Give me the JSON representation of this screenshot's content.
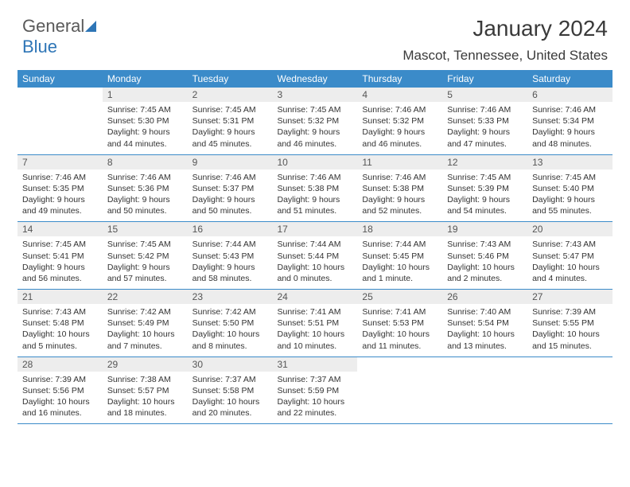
{
  "logo": {
    "text_a": "General",
    "text_b": "Blue",
    "color_gray": "#5a5a5a",
    "color_blue": "#2e75b6"
  },
  "title": "January 2024",
  "location": "Mascot, Tennessee, United States",
  "header_bg": "#3b8bc9",
  "header_fg": "#ffffff",
  "daynum_bg": "#ededed",
  "border_color": "#3b8bc9",
  "weekdays": [
    "Sunday",
    "Monday",
    "Tuesday",
    "Wednesday",
    "Thursday",
    "Friday",
    "Saturday"
  ],
  "weeks": [
    [
      null,
      {
        "n": "1",
        "sr": "Sunrise: 7:45 AM",
        "ss": "Sunset: 5:30 PM",
        "dl1": "Daylight: 9 hours",
        "dl2": "and 44 minutes."
      },
      {
        "n": "2",
        "sr": "Sunrise: 7:45 AM",
        "ss": "Sunset: 5:31 PM",
        "dl1": "Daylight: 9 hours",
        "dl2": "and 45 minutes."
      },
      {
        "n": "3",
        "sr": "Sunrise: 7:45 AM",
        "ss": "Sunset: 5:32 PM",
        "dl1": "Daylight: 9 hours",
        "dl2": "and 46 minutes."
      },
      {
        "n": "4",
        "sr": "Sunrise: 7:46 AM",
        "ss": "Sunset: 5:32 PM",
        "dl1": "Daylight: 9 hours",
        "dl2": "and 46 minutes."
      },
      {
        "n": "5",
        "sr": "Sunrise: 7:46 AM",
        "ss": "Sunset: 5:33 PM",
        "dl1": "Daylight: 9 hours",
        "dl2": "and 47 minutes."
      },
      {
        "n": "6",
        "sr": "Sunrise: 7:46 AM",
        "ss": "Sunset: 5:34 PM",
        "dl1": "Daylight: 9 hours",
        "dl2": "and 48 minutes."
      }
    ],
    [
      {
        "n": "7",
        "sr": "Sunrise: 7:46 AM",
        "ss": "Sunset: 5:35 PM",
        "dl1": "Daylight: 9 hours",
        "dl2": "and 49 minutes."
      },
      {
        "n": "8",
        "sr": "Sunrise: 7:46 AM",
        "ss": "Sunset: 5:36 PM",
        "dl1": "Daylight: 9 hours",
        "dl2": "and 50 minutes."
      },
      {
        "n": "9",
        "sr": "Sunrise: 7:46 AM",
        "ss": "Sunset: 5:37 PM",
        "dl1": "Daylight: 9 hours",
        "dl2": "and 50 minutes."
      },
      {
        "n": "10",
        "sr": "Sunrise: 7:46 AM",
        "ss": "Sunset: 5:38 PM",
        "dl1": "Daylight: 9 hours",
        "dl2": "and 51 minutes."
      },
      {
        "n": "11",
        "sr": "Sunrise: 7:46 AM",
        "ss": "Sunset: 5:38 PM",
        "dl1": "Daylight: 9 hours",
        "dl2": "and 52 minutes."
      },
      {
        "n": "12",
        "sr": "Sunrise: 7:45 AM",
        "ss": "Sunset: 5:39 PM",
        "dl1": "Daylight: 9 hours",
        "dl2": "and 54 minutes."
      },
      {
        "n": "13",
        "sr": "Sunrise: 7:45 AM",
        "ss": "Sunset: 5:40 PM",
        "dl1": "Daylight: 9 hours",
        "dl2": "and 55 minutes."
      }
    ],
    [
      {
        "n": "14",
        "sr": "Sunrise: 7:45 AM",
        "ss": "Sunset: 5:41 PM",
        "dl1": "Daylight: 9 hours",
        "dl2": "and 56 minutes."
      },
      {
        "n": "15",
        "sr": "Sunrise: 7:45 AM",
        "ss": "Sunset: 5:42 PM",
        "dl1": "Daylight: 9 hours",
        "dl2": "and 57 minutes."
      },
      {
        "n": "16",
        "sr": "Sunrise: 7:44 AM",
        "ss": "Sunset: 5:43 PM",
        "dl1": "Daylight: 9 hours",
        "dl2": "and 58 minutes."
      },
      {
        "n": "17",
        "sr": "Sunrise: 7:44 AM",
        "ss": "Sunset: 5:44 PM",
        "dl1": "Daylight: 10 hours",
        "dl2": "and 0 minutes."
      },
      {
        "n": "18",
        "sr": "Sunrise: 7:44 AM",
        "ss": "Sunset: 5:45 PM",
        "dl1": "Daylight: 10 hours",
        "dl2": "and 1 minute."
      },
      {
        "n": "19",
        "sr": "Sunrise: 7:43 AM",
        "ss": "Sunset: 5:46 PM",
        "dl1": "Daylight: 10 hours",
        "dl2": "and 2 minutes."
      },
      {
        "n": "20",
        "sr": "Sunrise: 7:43 AM",
        "ss": "Sunset: 5:47 PM",
        "dl1": "Daylight: 10 hours",
        "dl2": "and 4 minutes."
      }
    ],
    [
      {
        "n": "21",
        "sr": "Sunrise: 7:43 AM",
        "ss": "Sunset: 5:48 PM",
        "dl1": "Daylight: 10 hours",
        "dl2": "and 5 minutes."
      },
      {
        "n": "22",
        "sr": "Sunrise: 7:42 AM",
        "ss": "Sunset: 5:49 PM",
        "dl1": "Daylight: 10 hours",
        "dl2": "and 7 minutes."
      },
      {
        "n": "23",
        "sr": "Sunrise: 7:42 AM",
        "ss": "Sunset: 5:50 PM",
        "dl1": "Daylight: 10 hours",
        "dl2": "and 8 minutes."
      },
      {
        "n": "24",
        "sr": "Sunrise: 7:41 AM",
        "ss": "Sunset: 5:51 PM",
        "dl1": "Daylight: 10 hours",
        "dl2": "and 10 minutes."
      },
      {
        "n": "25",
        "sr": "Sunrise: 7:41 AM",
        "ss": "Sunset: 5:53 PM",
        "dl1": "Daylight: 10 hours",
        "dl2": "and 11 minutes."
      },
      {
        "n": "26",
        "sr": "Sunrise: 7:40 AM",
        "ss": "Sunset: 5:54 PM",
        "dl1": "Daylight: 10 hours",
        "dl2": "and 13 minutes."
      },
      {
        "n": "27",
        "sr": "Sunrise: 7:39 AM",
        "ss": "Sunset: 5:55 PM",
        "dl1": "Daylight: 10 hours",
        "dl2": "and 15 minutes."
      }
    ],
    [
      {
        "n": "28",
        "sr": "Sunrise: 7:39 AM",
        "ss": "Sunset: 5:56 PM",
        "dl1": "Daylight: 10 hours",
        "dl2": "and 16 minutes."
      },
      {
        "n": "29",
        "sr": "Sunrise: 7:38 AM",
        "ss": "Sunset: 5:57 PM",
        "dl1": "Daylight: 10 hours",
        "dl2": "and 18 minutes."
      },
      {
        "n": "30",
        "sr": "Sunrise: 7:37 AM",
        "ss": "Sunset: 5:58 PM",
        "dl1": "Daylight: 10 hours",
        "dl2": "and 20 minutes."
      },
      {
        "n": "31",
        "sr": "Sunrise: 7:37 AM",
        "ss": "Sunset: 5:59 PM",
        "dl1": "Daylight: 10 hours",
        "dl2": "and 22 minutes."
      },
      null,
      null,
      null
    ]
  ]
}
